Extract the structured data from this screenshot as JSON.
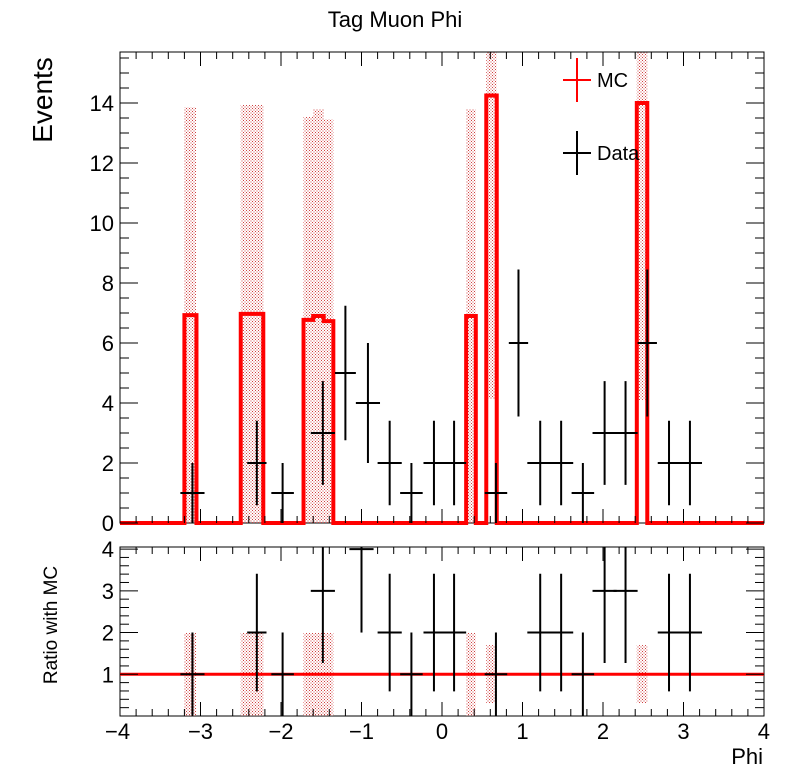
{
  "chart_data": [
    {
      "type": "histogram",
      "title": "Tag Muon Phi",
      "xlabel": "",
      "ylabel": "Events",
      "xlim": [
        -4,
        4
      ],
      "ylim": [
        0,
        15.7
      ],
      "yticks": [
        0,
        2,
        4,
        6,
        8,
        10,
        12,
        14
      ],
      "y_tick_labels": [
        "0",
        "2",
        "4",
        "6",
        "8",
        "10",
        "12",
        "14"
      ],
      "legend": {
        "placement": "top-right",
        "entries": [
          {
            "label": "MC",
            "color": "#ff0000"
          },
          {
            "label": "Data",
            "color": "#000000"
          }
        ]
      },
      "series": [
        {
          "name": "MC",
          "color": "#ff0000",
          "band_color": "#d04040",
          "bins": [
            {
              "x0": -4.0,
              "x1": -3.2,
              "y": 0,
              "err": 0
            },
            {
              "x0": -3.2,
              "x1": -3.05,
              "y": 6.93,
              "err": 6.93
            },
            {
              "x0": -3.05,
              "x1": -2.5,
              "y": 0,
              "err": 0
            },
            {
              "x0": -2.5,
              "x1": -2.22,
              "y": 6.97,
              "err": 6.97
            },
            {
              "x0": -2.22,
              "x1": -1.72,
              "y": 0,
              "err": 0
            },
            {
              "x0": -1.72,
              "x1": -1.6,
              "y": 6.77,
              "err": 6.77
            },
            {
              "x0": -1.6,
              "x1": -1.47,
              "y": 6.9,
              "err": 6.9
            },
            {
              "x0": -1.47,
              "x1": -1.35,
              "y": 6.73,
              "err": 6.73
            },
            {
              "x0": -1.35,
              "x1": 0.3,
              "y": 0,
              "err": 0
            },
            {
              "x0": 0.3,
              "x1": 0.42,
              "y": 6.9,
              "err": 6.9
            },
            {
              "x0": 0.42,
              "x1": 0.55,
              "y": 0,
              "err": 0
            },
            {
              "x0": 0.55,
              "x1": 0.68,
              "y": 14.25,
              "err": 10.1
            },
            {
              "x0": 0.68,
              "x1": 2.42,
              "y": 0,
              "err": 0
            },
            {
              "x0": 2.42,
              "x1": 2.55,
              "y": 14.0,
              "err": 9.9
            },
            {
              "x0": 2.55,
              "x1": 4.0,
              "y": 0,
              "err": 0
            }
          ]
        },
        {
          "name": "Data",
          "color": "#000000",
          "points": [
            {
              "x": -3.1,
              "xerr": 0.15,
              "y": 1,
              "yerr": 1
            },
            {
              "x": -2.3,
              "xerr": 0.12,
              "y": 2,
              "yerr": 1.41
            },
            {
              "x": -1.98,
              "xerr": 0.14,
              "y": 1,
              "yerr": 1
            },
            {
              "x": -1.48,
              "xerr": 0.15,
              "y": 3,
              "yerr": 1.73
            },
            {
              "x": -1.2,
              "xerr": 0.13,
              "y": 5,
              "yerr": 2.24
            },
            {
              "x": -0.92,
              "xerr": 0.15,
              "y": 4,
              "yerr": 2
            },
            {
              "x": -0.65,
              "xerr": 0.15,
              "y": 2,
              "yerr": 1.41
            },
            {
              "x": -0.38,
              "xerr": 0.14,
              "y": 1,
              "yerr": 1
            },
            {
              "x": -0.1,
              "xerr": 0.13,
              "y": 2,
              "yerr": 1.41
            },
            {
              "x": 0.15,
              "xerr": 0.15,
              "y": 2,
              "yerr": 1.41
            },
            {
              "x": 0.67,
              "xerr": 0.14,
              "y": 1,
              "yerr": 1
            },
            {
              "x": 0.95,
              "xerr": 0.12,
              "y": 6,
              "yerr": 2.45
            },
            {
              "x": 1.22,
              "xerr": 0.16,
              "y": 2,
              "yerr": 1.41
            },
            {
              "x": 1.48,
              "xerr": 0.15,
              "y": 2,
              "yerr": 1.41
            },
            {
              "x": 1.75,
              "xerr": 0.14,
              "y": 1,
              "yerr": 1
            },
            {
              "x": 2.02,
              "xerr": 0.15,
              "y": 3,
              "yerr": 1.73
            },
            {
              "x": 2.28,
              "xerr": 0.15,
              "y": 3,
              "yerr": 1.73
            },
            {
              "x": 2.55,
              "xerr": 0.12,
              "y": 6,
              "yerr": 2.45
            },
            {
              "x": 2.82,
              "xerr": 0.14,
              "y": 2,
              "yerr": 1.41
            },
            {
              "x": 3.08,
              "xerr": 0.15,
              "y": 2,
              "yerr": 1.41
            }
          ]
        }
      ]
    },
    {
      "type": "histogram",
      "title": "",
      "xlabel": "Phi",
      "ylabel": "Ratio with MC",
      "xlim": [
        -4,
        4
      ],
      "ylim": [
        0,
        4.05
      ],
      "xticks": [
        -4,
        -3,
        -2,
        -1,
        0,
        1,
        2,
        3,
        4
      ],
      "x_tick_labels": [
        "−4",
        "−3",
        "−2",
        "−1",
        "0",
        "1",
        "2",
        "3",
        "4"
      ],
      "yticks": [
        1,
        2,
        3,
        4
      ],
      "y_tick_labels": [
        "1",
        "2",
        "3",
        "4"
      ],
      "reference_line": {
        "y": 1,
        "color": "#ff0000"
      },
      "band_color": "#d04040",
      "bands": [
        {
          "x0": -3.2,
          "x1": -3.05,
          "y0": 0,
          "y1": 2
        },
        {
          "x0": -2.5,
          "x1": -2.22,
          "y0": 0,
          "y1": 2
        },
        {
          "x0": -1.72,
          "x1": -1.35,
          "y0": 0,
          "y1": 2
        },
        {
          "x0": 0.3,
          "x1": 0.42,
          "y0": 0,
          "y1": 2
        },
        {
          "x0": 0.55,
          "x1": 0.68,
          "y0": 0.3,
          "y1": 1.7
        },
        {
          "x0": 2.42,
          "x1": 2.55,
          "y0": 0.3,
          "y1": 1.7
        }
      ],
      "points": [
        {
          "x": -3.1,
          "xerr": 0.15,
          "y": 1,
          "yerr": 1
        },
        {
          "x": -2.3,
          "xerr": 0.12,
          "y": 2,
          "yerr": 1.41
        },
        {
          "x": -1.98,
          "xerr": 0.14,
          "y": 1,
          "yerr": 1
        },
        {
          "x": -1.48,
          "xerr": 0.15,
          "y": 3,
          "yerr": 1.73
        },
        {
          "x": -1.0,
          "xerr": 0.15,
          "y": 4,
          "yerr": 2
        },
        {
          "x": -0.65,
          "xerr": 0.15,
          "y": 2,
          "yerr": 1.41
        },
        {
          "x": -0.38,
          "xerr": 0.14,
          "y": 1,
          "yerr": 1
        },
        {
          "x": -0.1,
          "xerr": 0.13,
          "y": 2,
          "yerr": 1.41
        },
        {
          "x": 0.15,
          "xerr": 0.15,
          "y": 2,
          "yerr": 1.41
        },
        {
          "x": 0.67,
          "xerr": 0.14,
          "y": 1,
          "yerr": 1
        },
        {
          "x": 1.22,
          "xerr": 0.16,
          "y": 2,
          "yerr": 1.41
        },
        {
          "x": 1.48,
          "xerr": 0.15,
          "y": 2,
          "yerr": 1.41
        },
        {
          "x": 1.75,
          "xerr": 0.14,
          "y": 1,
          "yerr": 1
        },
        {
          "x": 2.02,
          "xerr": 0.15,
          "y": 3,
          "yerr": 1.73
        },
        {
          "x": 2.28,
          "xerr": 0.15,
          "y": 3,
          "yerr": 1.73
        },
        {
          "x": 2.82,
          "xerr": 0.14,
          "y": 2,
          "yerr": 1.41
        },
        {
          "x": 3.08,
          "xerr": 0.15,
          "y": 2,
          "yerr": 1.41
        }
      ]
    }
  ]
}
